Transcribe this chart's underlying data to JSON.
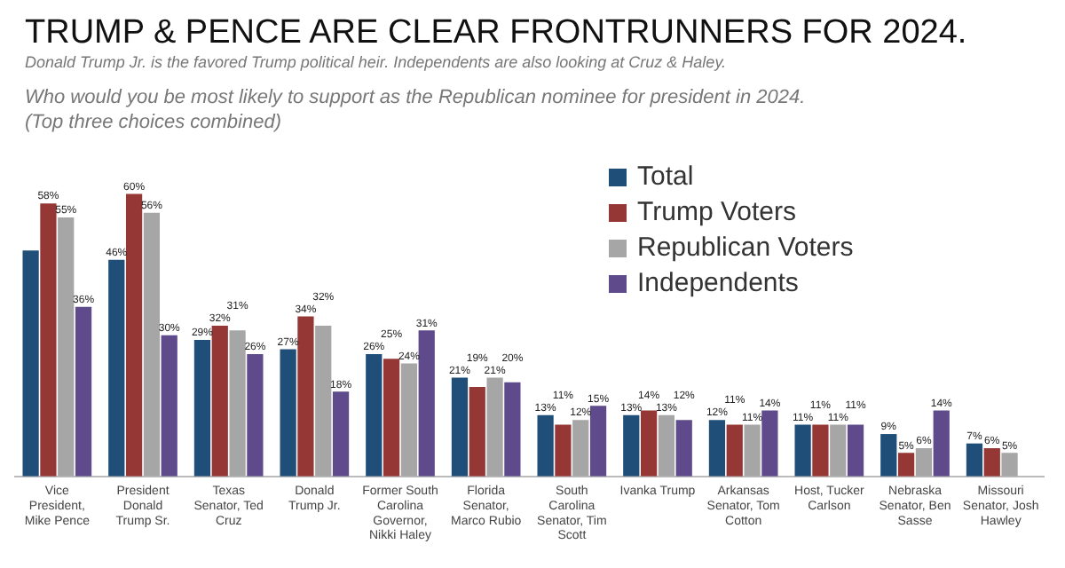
{
  "chart_data": {
    "type": "bar",
    "title": "TRUMP & PENCE ARE CLEAR FRONTRUNNERS FOR 2024.",
    "subtitle": "Donald Trump Jr. is the favored Trump political heir.  Independents are also looking at Cruz & Haley.",
    "annotations": [
      "Who would you be most likely to support as the Republican nominee for president in 2024.",
      "(Top three choices combined)"
    ],
    "categories": [
      "Vice President, Mike Pence",
      "President Donald Trump Sr.",
      "Texas Senator, Ted Cruz",
      "Donald Trump Jr.",
      "Former South Carolina Governor, Nikki Haley",
      "Florida Senator, Marco Rubio",
      "South Carolina Senator, Tim Scott",
      "Ivanka Trump",
      "Arkansas Senator, Tom Cotton",
      "Host, Tucker Carlson",
      "Nebraska Senator, Ben Sasse",
      "Missouri Senator, Josh Hawley"
    ],
    "series": [
      {
        "name": "Total",
        "color": "#1f4e79",
        "values": [
          48,
          46,
          29,
          27,
          26,
          21,
          13,
          13,
          12,
          11,
          9,
          7
        ],
        "value_labels": [
          null,
          "46%",
          "29%",
          "27%",
          "26%",
          "21%",
          "13%",
          "13%",
          "12%",
          "11%",
          "9%",
          "7%"
        ]
      },
      {
        "name": "Trump Voters",
        "color": "#953735",
        "values": [
          58,
          60,
          32,
          34,
          25,
          19,
          11,
          14,
          11,
          11,
          5,
          6
        ],
        "value_labels": [
          "58%",
          "60%",
          "32%",
          "34%",
          "25%",
          "19%",
          "11%",
          "14%",
          "11%",
          "11%",
          "5%",
          "6%"
        ]
      },
      {
        "name": "Republican Voters",
        "color": "#a6a6a6",
        "values": [
          55,
          56,
          31,
          32,
          24,
          21,
          12,
          13,
          11,
          11,
          6,
          5
        ],
        "value_labels": [
          "55%",
          "56%",
          "31%",
          "32%",
          "24%",
          "21%",
          "12%",
          "13%",
          "11%",
          "11%",
          "6%",
          "5%"
        ]
      },
      {
        "name": "Independents",
        "color": "#5f4b8b",
        "values": [
          36,
          30,
          26,
          18,
          31,
          20,
          15,
          12,
          14,
          11,
          14,
          null
        ],
        "value_labels": [
          "36%",
          "30%",
          "26%",
          "18%",
          "31%",
          "20%",
          "15%",
          "12%",
          "14%",
          "11%",
          "14%",
          null
        ]
      }
    ],
    "ylim": [
      0,
      65
    ],
    "tick_labels": "x",
    "grid": false,
    "legend": "top right"
  }
}
